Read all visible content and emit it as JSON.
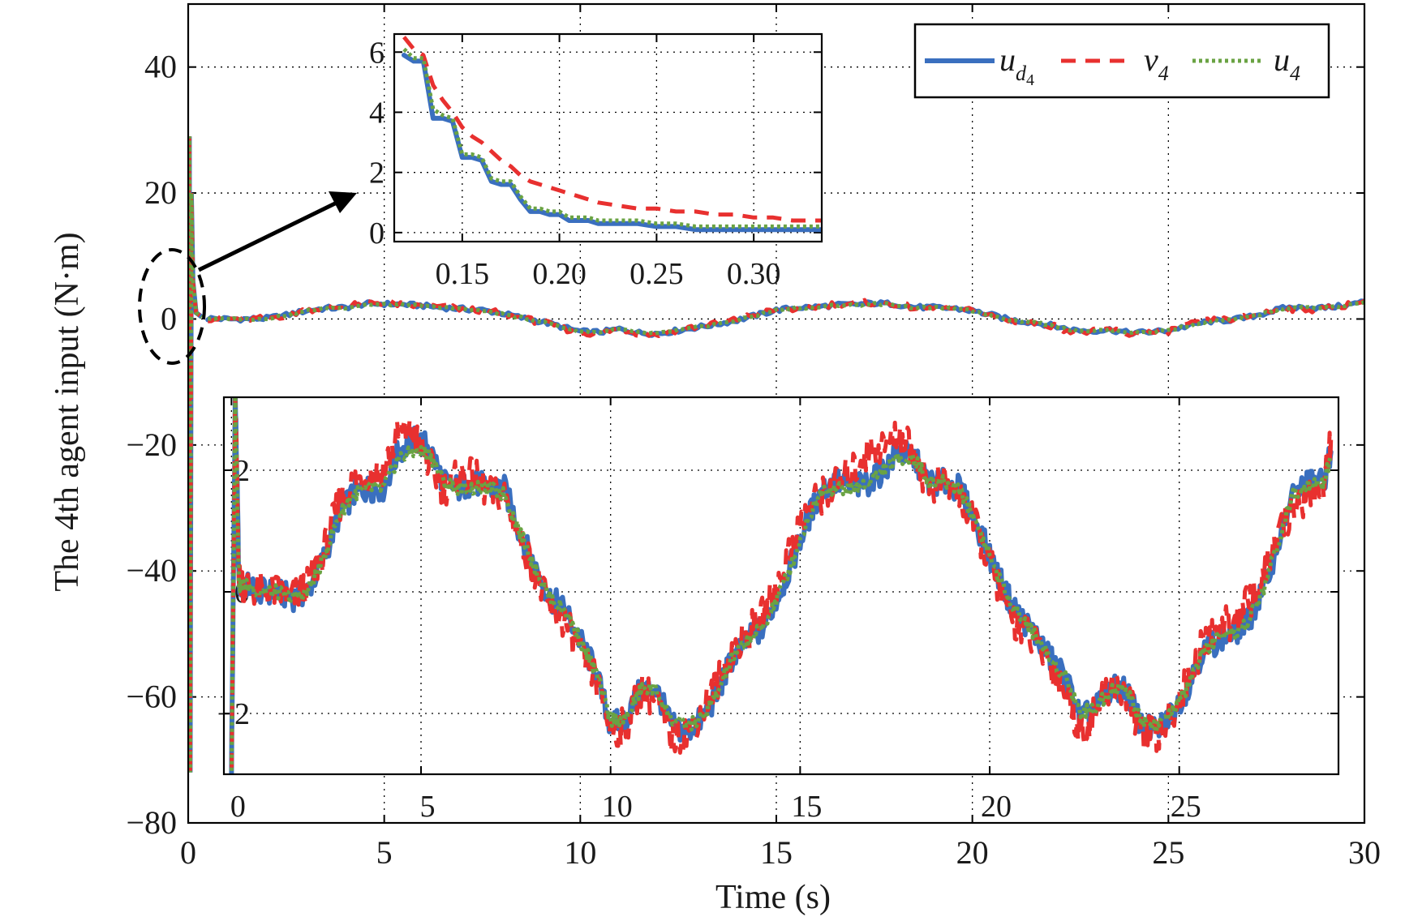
{
  "chart_data": [
    {
      "type": "line",
      "role": "main",
      "xlabel": "Time (s)",
      "ylabel": "The 4th agent input (N·m)",
      "xlim": [
        0,
        30
      ],
      "ylim": [
        -80,
        50
      ],
      "xticks": [
        0,
        5,
        10,
        15,
        20,
        25,
        30
      ],
      "yticks": [
        -80,
        -60,
        -40,
        -20,
        0,
        20,
        40
      ],
      "x_tick_labels": [
        "0",
        "5",
        "10",
        "15",
        "20",
        "25",
        "30"
      ],
      "y_tick_labels": [
        "−80",
        "−60",
        "−40",
        "−20",
        "0",
        "20",
        "40"
      ],
      "grid": true,
      "legend_position": "top-right",
      "colors": {
        "u_d4": "#3a6fbf",
        "v_4": "#e8302f",
        "u_4": "#6aa343"
      },
      "legend": [
        {
          "key": "u_d4",
          "base": "u",
          "sub": "d",
          "subsub": "4",
          "style": "solid"
        },
        {
          "key": "v_4",
          "base": "v",
          "sub": "4",
          "style": "dashed"
        },
        {
          "key": "u_4",
          "base": "u",
          "sub": "4",
          "style": "dotted"
        }
      ],
      "initial_transient": [
        [
          0,
          0
        ],
        [
          0.03,
          29
        ],
        [
          0.05,
          -72
        ],
        [
          0.08,
          20
        ],
        [
          0.12,
          6
        ],
        [
          0.2,
          1
        ],
        [
          0.35,
          0.3
        ]
      ],
      "x": [
        0.5,
        1,
        1.5,
        2,
        2.5,
        3,
        3.5,
        4,
        4.5,
        5,
        5.5,
        6,
        6.5,
        7,
        7.5,
        8,
        8.5,
        9,
        9.5,
        10,
        10.5,
        11,
        11.5,
        12,
        12.5,
        13,
        13.5,
        14,
        14.5,
        15,
        15.5,
        16,
        16.5,
        17,
        17.5,
        18,
        18.5,
        19,
        19.5,
        20,
        20.5,
        21,
        21.5,
        22,
        22.5,
        23,
        23.5,
        24,
        24.5,
        25,
        25.5,
        26,
        26.5,
        27,
        27.5,
        28,
        28.5,
        29,
        29.5,
        30
      ],
      "series": [
        {
          "name": "u_d4",
          "values": [
            0.1,
            0.0,
            0.0,
            0.1,
            0.6,
            1.3,
            1.7,
            1.8,
            2.4,
            2.4,
            2.3,
            2.1,
            1.8,
            1.6,
            1.4,
            0.9,
            0.2,
            -0.4,
            -1.2,
            -2.0,
            -2.1,
            -1.6,
            -2.2,
            -2.3,
            -1.8,
            -1.3,
            -0.8,
            -0.2,
            0.6,
            1.4,
            1.8,
            1.9,
            2.2,
            2.3,
            2.5,
            2.4,
            1.9,
            1.8,
            1.7,
            1.3,
            0.6,
            -0.2,
            -0.5,
            -1.0,
            -1.7,
            -1.9,
            -1.7,
            -2.2,
            -2.1,
            -1.8,
            -1.1,
            -0.4,
            -0.2,
            0.2,
            1.0,
            1.8,
            1.8,
            1.8,
            2.1,
            2.8
          ]
        },
        {
          "name": "v_4",
          "values": [
            0.1,
            0.0,
            0.0,
            0.1,
            0.6,
            1.4,
            1.8,
            1.9,
            2.6,
            2.6,
            2.2,
            2.0,
            1.9,
            1.6,
            1.4,
            0.9,
            0.1,
            -0.5,
            -1.4,
            -2.2,
            -2.3,
            -1.5,
            -2.3,
            -2.4,
            -1.7,
            -1.2,
            -0.7,
            -0.1,
            0.8,
            1.4,
            1.6,
            1.9,
            2.4,
            2.5,
            2.6,
            2.4,
            1.8,
            1.7,
            1.6,
            1.3,
            0.5,
            -0.3,
            -0.6,
            -1.0,
            -1.9,
            -2.1,
            -1.6,
            -2.4,
            -2.2,
            -1.9,
            -1.0,
            -0.3,
            -0.1,
            0.3,
            1.1,
            1.6,
            1.5,
            1.6,
            2.2,
            2.9
          ]
        },
        {
          "name": "u_4",
          "values": [
            0.1,
            0.0,
            0.0,
            0.1,
            0.6,
            1.3,
            1.7,
            1.8,
            2.3,
            2.3,
            2.3,
            2.0,
            1.8,
            1.6,
            1.3,
            0.8,
            0.2,
            -0.4,
            -1.2,
            -2.0,
            -2.1,
            -1.6,
            -2.2,
            -2.3,
            -1.8,
            -1.3,
            -0.8,
            -0.2,
            0.6,
            1.4,
            1.8,
            1.8,
            2.2,
            2.2,
            2.4,
            2.3,
            1.8,
            1.8,
            1.7,
            1.3,
            0.6,
            -0.2,
            -0.5,
            -1.0,
            -1.7,
            -1.9,
            -1.7,
            -2.1,
            -2.1,
            -1.8,
            -1.1,
            -0.4,
            -0.2,
            0.2,
            1.0,
            1.8,
            1.8,
            1.8,
            2.1,
            2.7
          ]
        }
      ]
    },
    {
      "type": "line",
      "role": "zoom-inset-early",
      "xlim": [
        0.115,
        0.335
      ],
      "ylim": [
        -0.3,
        6.6
      ],
      "xticks": [
        0.15,
        0.2,
        0.25,
        0.3
      ],
      "yticks": [
        0,
        2,
        4,
        6
      ],
      "x_tick_labels": [
        "0.15",
        "0.20",
        "0.25",
        "0.30"
      ],
      "y_tick_labels": [
        "0",
        "2",
        "4",
        "6"
      ],
      "grid": true,
      "x": [
        0.12,
        0.125,
        0.13,
        0.135,
        0.14,
        0.145,
        0.15,
        0.155,
        0.16,
        0.165,
        0.17,
        0.175,
        0.18,
        0.185,
        0.19,
        0.195,
        0.2,
        0.205,
        0.21,
        0.215,
        0.22,
        0.23,
        0.24,
        0.25,
        0.26,
        0.27,
        0.28,
        0.29,
        0.3,
        0.31,
        0.32,
        0.335
      ],
      "series": [
        {
          "name": "u_d4",
          "values": [
            5.9,
            5.7,
            5.7,
            3.8,
            3.8,
            3.7,
            2.5,
            2.5,
            2.4,
            1.7,
            1.6,
            1.6,
            1.1,
            0.7,
            0.7,
            0.6,
            0.6,
            0.4,
            0.4,
            0.4,
            0.3,
            0.3,
            0.3,
            0.2,
            0.2,
            0.1,
            0.1,
            0.1,
            0.1,
            0.1,
            0.1,
            0.1
          ]
        },
        {
          "name": "v_4",
          "values": [
            6.5,
            6.1,
            5.9,
            4.9,
            4.4,
            4.0,
            3.5,
            3.2,
            3.0,
            2.7,
            2.4,
            2.2,
            1.9,
            1.7,
            1.6,
            1.5,
            1.4,
            1.3,
            1.2,
            1.1,
            1.0,
            0.9,
            0.8,
            0.8,
            0.7,
            0.7,
            0.6,
            0.6,
            0.5,
            0.5,
            0.4,
            0.4
          ]
        },
        {
          "name": "u_4",
          "values": [
            6.1,
            5.8,
            5.8,
            4.1,
            3.9,
            3.8,
            2.6,
            2.6,
            2.5,
            1.8,
            1.7,
            1.7,
            1.2,
            0.8,
            0.8,
            0.7,
            0.7,
            0.5,
            0.5,
            0.5,
            0.4,
            0.4,
            0.4,
            0.3,
            0.3,
            0.2,
            0.2,
            0.2,
            0.2,
            0.2,
            0.2,
            0.2
          ]
        }
      ]
    },
    {
      "type": "line",
      "role": "zoom-inset-full",
      "xlim": [
        -0.2,
        29.2
      ],
      "ylim": [
        -3.0,
        3.2
      ],
      "xticks": [
        0,
        5,
        10,
        15,
        20,
        25
      ],
      "yticks": [
        -2,
        0,
        2
      ],
      "x_tick_labels": [
        "0",
        "5",
        "10",
        "15",
        "20",
        "25"
      ],
      "y_tick_labels": [
        "−2",
        "0",
        "2"
      ],
      "grid": true,
      "x": [
        0,
        0.1,
        0.2,
        0.4,
        0.8,
        1.2,
        1.6,
        2.0,
        2.4,
        2.8,
        3.2,
        3.6,
        4.0,
        4.4,
        4.8,
        5.2,
        5.6,
        6.0,
        6.4,
        6.8,
        7.2,
        7.6,
        8.0,
        8.4,
        8.8,
        9.2,
        9.6,
        10.0,
        10.4,
        10.8,
        11.2,
        11.6,
        12.0,
        12.4,
        12.8,
        13.2,
        13.6,
        14.0,
        14.4,
        14.8,
        15.2,
        15.6,
        16.0,
        16.4,
        16.8,
        17.2,
        17.6,
        18.0,
        18.4,
        18.8,
        19.2,
        19.6,
        20.0,
        20.4,
        20.8,
        21.2,
        21.6,
        22.0,
        22.4,
        22.8,
        23.2,
        23.6,
        24.0,
        24.4,
        24.8,
        25.2,
        25.6,
        26.0,
        26.4,
        26.8,
        27.2,
        27.6,
        28.0,
        28.4,
        28.8,
        29.0
      ],
      "series": [
        {
          "name": "u_d4",
          "values": [
            -3.0,
            3.2,
            0.1,
            0.1,
            0.0,
            0.0,
            -0.1,
            0.0,
            0.5,
            1.2,
            1.6,
            1.7,
            1.7,
            2.3,
            2.5,
            2.4,
            1.8,
            1.7,
            1.8,
            1.7,
            1.7,
            1.0,
            0.4,
            -0.1,
            -0.3,
            -0.8,
            -1.3,
            -2.2,
            -2.1,
            -1.6,
            -1.6,
            -2.2,
            -2.3,
            -2.1,
            -1.7,
            -1.1,
            -0.8,
            -0.6,
            -0.1,
            0.5,
            1.2,
            1.7,
            1.8,
            1.7,
            1.8,
            2.0,
            2.3,
            2.2,
            1.8,
            1.8,
            1.7,
            1.2,
            0.6,
            0.0,
            -0.4,
            -0.7,
            -1.1,
            -1.4,
            -2.1,
            -1.9,
            -1.6,
            -1.6,
            -2.2,
            -2.3,
            -2.0,
            -1.6,
            -1.0,
            -0.8,
            -0.7,
            -0.5,
            0.0,
            0.8,
            1.6,
            1.8,
            1.8,
            2.3
          ]
        },
        {
          "name": "v_4",
          "values": [
            -3.0,
            3.2,
            0.2,
            0.1,
            0.0,
            0.0,
            -0.1,
            0.1,
            0.6,
            1.4,
            1.8,
            1.9,
            2.0,
            2.6,
            2.6,
            2.1,
            1.7,
            1.9,
            1.9,
            1.6,
            1.6,
            0.9,
            0.3,
            -0.3,
            -0.5,
            -1.0,
            -1.4,
            -2.3,
            -2.2,
            -1.6,
            -1.8,
            -2.4,
            -2.3,
            -2.0,
            -1.5,
            -1.0,
            -0.7,
            -0.4,
            0.1,
            0.8,
            1.4,
            1.6,
            1.8,
            2.0,
            2.3,
            2.4,
            2.6,
            2.3,
            1.7,
            1.8,
            1.6,
            1.1,
            0.5,
            -0.2,
            -0.6,
            -0.8,
            -1.2,
            -1.6,
            -2.3,
            -2.0,
            -1.5,
            -1.7,
            -2.3,
            -2.4,
            -2.0,
            -1.5,
            -0.9,
            -0.6,
            -0.5,
            -0.2,
            0.2,
            0.9,
            1.4,
            1.6,
            1.7,
            2.5
          ]
        },
        {
          "name": "u_4",
          "values": [
            -3.0,
            3.2,
            0.1,
            0.1,
            0.0,
            0.0,
            -0.1,
            0.0,
            0.5,
            1.2,
            1.6,
            1.7,
            1.7,
            2.2,
            2.3,
            2.3,
            1.8,
            1.7,
            1.7,
            1.7,
            1.6,
            1.0,
            0.4,
            -0.1,
            -0.3,
            -0.8,
            -1.3,
            -2.1,
            -2.1,
            -1.6,
            -1.6,
            -2.1,
            -2.2,
            -2.1,
            -1.7,
            -1.1,
            -0.8,
            -0.6,
            -0.1,
            0.5,
            1.2,
            1.7,
            1.7,
            1.7,
            1.8,
            2.0,
            2.2,
            2.2,
            1.8,
            1.8,
            1.7,
            1.2,
            0.6,
            0.0,
            -0.4,
            -0.7,
            -1.1,
            -1.4,
            -2.0,
            -1.9,
            -1.6,
            -1.6,
            -2.1,
            -2.2,
            -2.0,
            -1.6,
            -1.0,
            -0.8,
            -0.7,
            -0.5,
            0.0,
            0.8,
            1.6,
            1.8,
            1.8,
            2.2
          ]
        }
      ]
    }
  ]
}
